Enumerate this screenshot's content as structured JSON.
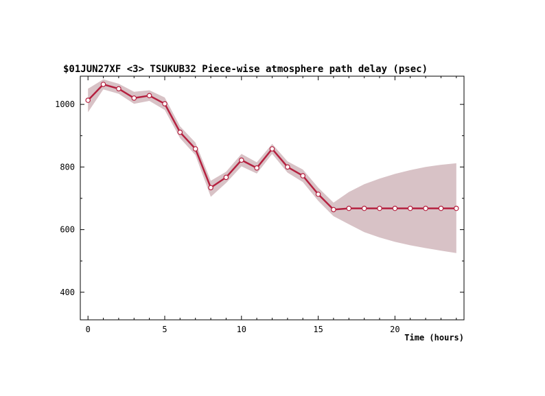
{
  "chart_data": {
    "type": "line",
    "title": "$01JUN27XF <3>  TSUKUB32  Piece-wise atmosphere path delay (psec)",
    "xlabel": "Time (hours)",
    "ylabel": "",
    "xlim": [
      -0.5,
      24.5
    ],
    "ylim": [
      312,
      1090
    ],
    "x_ticks": [
      0,
      5,
      10,
      15,
      20
    ],
    "y_ticks": [
      400,
      600,
      800,
      1000
    ],
    "x_tick_labels": [
      "0",
      "5",
      "10",
      "15",
      "20"
    ],
    "y_tick_labels": [
      "400",
      "600",
      "800",
      "1000"
    ],
    "grid": false,
    "legend": "none",
    "colors": {
      "line": "#b5203f",
      "band": "#d8c2c6",
      "marker_fill": "#ffffff"
    },
    "series": [
      {
        "x": [
          0,
          1,
          2,
          3,
          4,
          5,
          6,
          7,
          8,
          9,
          10,
          11,
          12,
          13,
          14,
          15,
          16,
          17,
          18,
          19,
          20,
          21,
          22,
          23,
          24
        ],
        "values": [
          1013,
          1064,
          1050,
          1020,
          1028,
          1002,
          911,
          858,
          734,
          767,
          822,
          797,
          858,
          800,
          772,
          713,
          664,
          668,
          668,
          668,
          668,
          668,
          668,
          668,
          668
        ],
        "upper": [
          1050,
          1080,
          1066,
          1040,
          1045,
          1022,
          930,
          878,
          756,
          785,
          842,
          815,
          874,
          818,
          792,
          734,
          686,
          720,
          745,
          763,
          778,
          790,
          800,
          807,
          812
        ],
        "lower": [
          975,
          1048,
          1034,
          1002,
          1011,
          982,
          892,
          838,
          705,
          749,
          802,
          779,
          842,
          782,
          752,
          692,
          643,
          617,
          592,
          575,
          561,
          550,
          541,
          533,
          525
        ]
      }
    ]
  }
}
